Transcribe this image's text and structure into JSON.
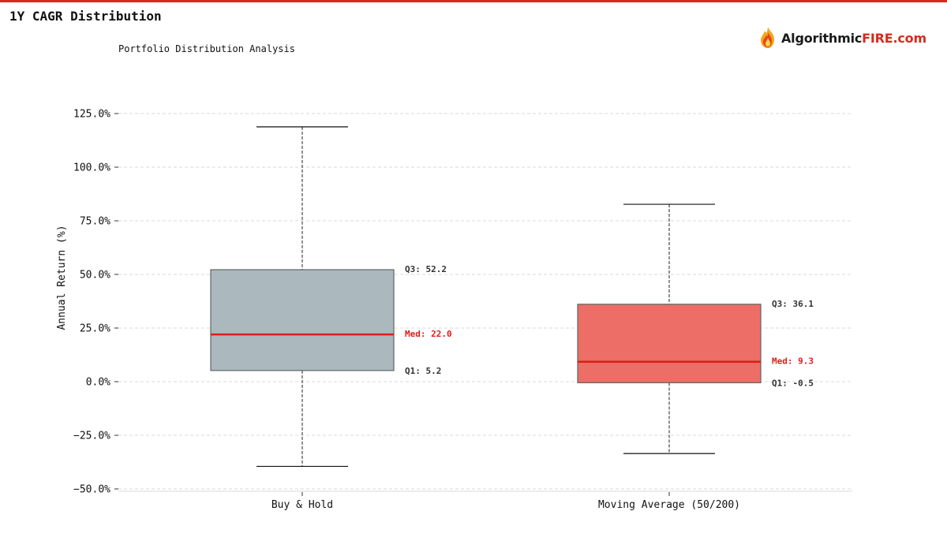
{
  "header": {
    "title": "1Y CAGR Distribution",
    "subtitle": "Portfolio Distribution Analysis"
  },
  "logo": {
    "prefix": "Algorithmic",
    "accent": "FIRE.com",
    "icon": "flame-icon"
  },
  "colors": {
    "top_bar": "#d8291f",
    "median_line": "#dd1c1a",
    "median_label": "#dd1c1a",
    "annotation_text": "#333333",
    "grid": "#d9d9d9"
  },
  "chart_data": {
    "type": "box",
    "ylabel": "Annual Return (%)",
    "xlabel": "",
    "ylim": [
      -50,
      130
    ],
    "yticks": [
      -50,
      -25,
      0,
      25,
      50,
      75,
      100,
      125
    ],
    "ytick_labels": [
      "−50.0%",
      "−25.0%",
      "0.0%",
      "25.0%",
      "50.0%",
      "75.0%",
      "100.0%",
      "125.0%"
    ],
    "grid": true,
    "series": [
      {
        "name": "Buy & Hold",
        "whisker_low": -39.5,
        "q1": 5.2,
        "median": 22.0,
        "q3": 52.2,
        "whisker_high": 118.8,
        "color": "#abb8be",
        "label_q3": "Q3: 52.2",
        "label_med": "Med: 22.0",
        "label_q1": "Q1: 5.2"
      },
      {
        "name": "Moving Average (50/200)",
        "whisker_low": -33.5,
        "q1": -0.5,
        "median": 9.3,
        "q3": 36.1,
        "whisker_high": 82.7,
        "color": "#ec6e67",
        "label_q3": "Q3: 36.1",
        "label_med": "Med: 9.3",
        "label_q1": "Q1: -0.5"
      }
    ]
  }
}
